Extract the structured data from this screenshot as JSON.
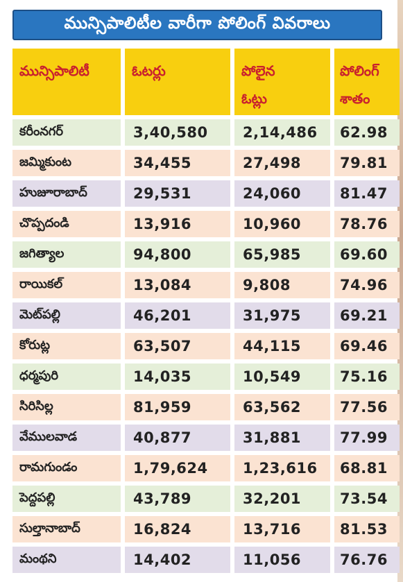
{
  "title": "మున్సిపాలిటీల వారీగా పోలింగ్ వివరాలు",
  "headers": {
    "municipality": "మున్సిపాలిటీ",
    "voters": "ఓటర్లు",
    "polled_line1": "పోలైన",
    "polled_line2": "ఓట్లు",
    "percent_line1": "పోలింగ్",
    "percent_line2": "శాతం"
  },
  "colors": {
    "title_bg": "#2a76c0",
    "header_bg": "#f8cf0f",
    "header_text": "#c8202e",
    "row_green": "#e5efd9",
    "row_purple": "#e2dcea",
    "row_peach": "#fbe3d2"
  },
  "rows": [
    {
      "name": "కరీంనగర్",
      "voters": "3,40,580",
      "polled": "2,14,486",
      "percent": "62.98",
      "tint": "green"
    },
    {
      "name": "జమ్మికుంట",
      "voters": "34,455",
      "polled": "27,498",
      "percent": "79.81",
      "tint": "peach"
    },
    {
      "name": "హుజూరాబాద్",
      "voters": "29,531",
      "polled": "24,060",
      "percent": "81.47",
      "tint": "purple"
    },
    {
      "name": "చొప్పదండి",
      "voters": "13,916",
      "polled": "10,960",
      "percent": "78.76",
      "tint": "peach"
    },
    {
      "name": "జగిత్యాల",
      "voters": "94,800",
      "polled": "65,985",
      "percent": "69.60",
      "tint": "green"
    },
    {
      "name": "రాయికల్",
      "voters": "13,084",
      "polled": "9,808",
      "percent": "74.96",
      "tint": "peach"
    },
    {
      "name": "మెట్‌పల్లి",
      "voters": "46,201",
      "polled": "31,975",
      "percent": "69.21",
      "tint": "purple"
    },
    {
      "name": "కోరుట్ల",
      "voters": "63,507",
      "polled": "44,115",
      "percent": "69.46",
      "tint": "peach"
    },
    {
      "name": "ధర్మపురి",
      "voters": "14,035",
      "polled": "10,549",
      "percent": "75.16",
      "tint": "green"
    },
    {
      "name": "సిరిసిల్ల",
      "voters": "81,959",
      "polled": "63,562",
      "percent": "77.56",
      "tint": "peach"
    },
    {
      "name": "వేములవాడ",
      "voters": "40,877",
      "polled": "31,881",
      "percent": "77.99",
      "tint": "purple"
    },
    {
      "name": "రామగుండం",
      "voters": "1,79,624",
      "polled": "1,23,616",
      "percent": "68.81",
      "tint": "peach"
    },
    {
      "name": "పెద్దపల్లి",
      "voters": "43,789",
      "polled": "32,201",
      "percent": "73.54",
      "tint": "green"
    },
    {
      "name": "సుల్తానాబాద్",
      "voters": "16,824",
      "polled": "13,716",
      "percent": "81.53",
      "tint": "peach"
    },
    {
      "name": "మంథని",
      "voters": "14,402",
      "polled": "11,056",
      "percent": "76.76",
      "tint": "purple"
    }
  ]
}
